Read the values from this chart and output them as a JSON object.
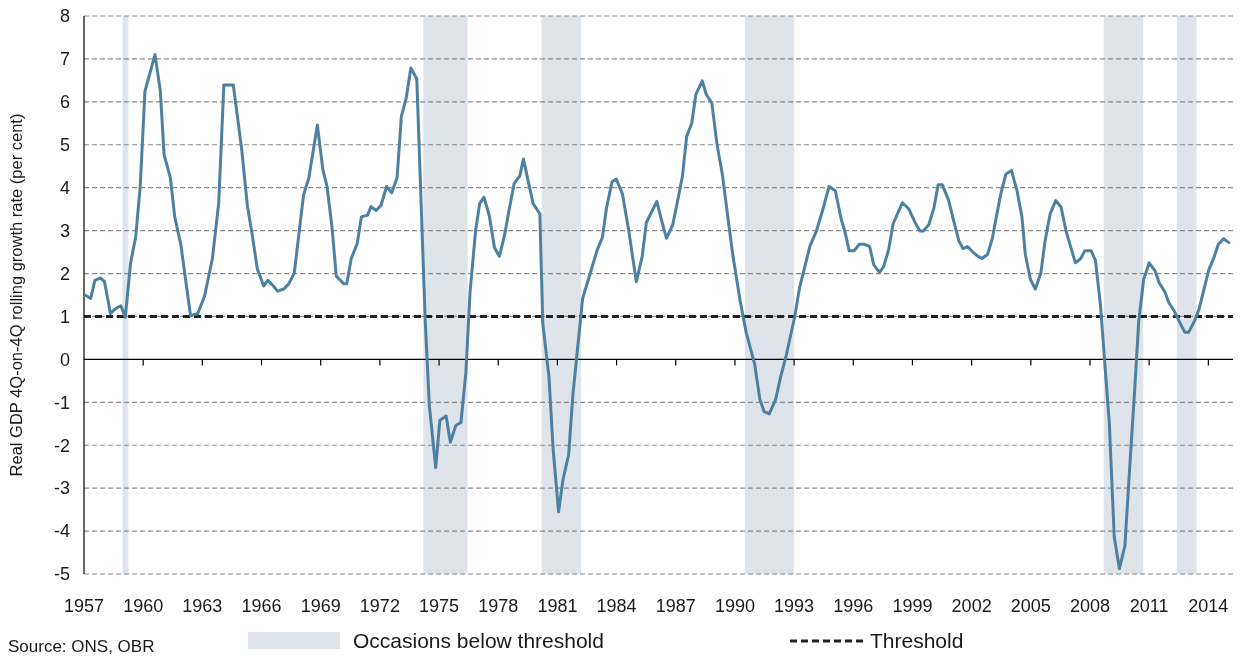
{
  "chart_data": {
    "type": "line",
    "ylabel": "Real GDP 4Q-on-4Q rolling growth rate (per cent)",
    "xlim": [
      1957,
      2015.25
    ],
    "xticks": [
      1957,
      1960,
      1963,
      1966,
      1969,
      1972,
      1975,
      1978,
      1981,
      1984,
      1987,
      1990,
      1993,
      1996,
      1999,
      2002,
      2005,
      2008,
      2011,
      2014
    ],
    "ylim": [
      -5,
      8
    ],
    "yticks": [
      -5,
      -4,
      -3,
      -2,
      -1,
      0,
      1,
      2,
      3,
      4,
      5,
      6,
      7,
      8
    ],
    "grid": "y",
    "legend": "bottom",
    "marker": "none",
    "line_style": "solid",
    "series": [
      {
        "color": "#4d81a2",
        "x": [
          1957.09,
          1957.34,
          1957.55,
          1957.83,
          1958.04,
          1958.34,
          1958.62,
          1958.87,
          1959.09,
          1959.36,
          1959.62,
          1959.85,
          1960.09,
          1960.6,
          1960.87,
          1961.06,
          1961.38,
          1961.6,
          1961.91,
          1962.4,
          1962.77,
          1963.11,
          1963.51,
          1963.83,
          1964.09,
          1964.57,
          1965.0,
          1965.28,
          1965.53,
          1965.79,
          1966.11,
          1966.32,
          1966.6,
          1966.81,
          1967.13,
          1967.38,
          1967.66,
          1968.13,
          1968.4,
          1968.83,
          1969.11,
          1969.32,
          1969.57,
          1969.79,
          1970.17,
          1970.32,
          1970.55,
          1970.85,
          1971.06,
          1971.38,
          1971.55,
          1971.81,
          1972.06,
          1972.34,
          1972.6,
          1972.87,
          1973.09,
          1973.34,
          1973.57,
          1973.87,
          1974.3,
          1974.51,
          1974.83,
          1975.04,
          1975.36,
          1975.57,
          1975.85,
          1976.11,
          1976.36,
          1976.57,
          1976.85,
          1977.06,
          1977.28,
          1977.55,
          1977.81,
          1978.06,
          1978.34,
          1978.55,
          1978.81,
          1979.09,
          1979.28,
          1979.51,
          1979.77,
          1980.11,
          1980.26,
          1980.57,
          1980.79,
          1981.06,
          1981.28,
          1981.57,
          1981.79,
          1982.28,
          1982.7,
          1983.02,
          1983.28,
          1983.49,
          1983.77,
          1983.98,
          1984.3,
          1984.62,
          1985.0,
          1985.3,
          1985.51,
          1985.79,
          1986.04,
          1986.28,
          1986.53,
          1986.85,
          1987.11,
          1987.34,
          1987.55,
          1987.81,
          1988.02,
          1988.34,
          1988.55,
          1988.83,
          1989.09,
          1989.36,
          1989.62,
          1989.87,
          1990.26,
          1990.57,
          1991.0,
          1991.26,
          1991.47,
          1991.74,
          1992.06,
          1992.32,
          1992.6,
          1993.02,
          1993.28,
          1993.81,
          1994.13,
          1994.45,
          1994.77,
          1995.09,
          1995.4,
          1995.57,
          1995.79,
          1996.04,
          1996.3,
          1996.57,
          1996.83,
          1997.04,
          1997.32,
          1997.53,
          1997.79,
          1998.02,
          1998.49,
          1998.81,
          1999.13,
          1999.38,
          1999.55,
          1999.83,
          2000.09,
          2000.3,
          2000.51,
          2000.83,
          2001.11,
          2001.36,
          2001.57,
          2001.79,
          2002.11,
          2002.32,
          2002.53,
          2002.81,
          2003.06,
          2003.28,
          2003.49,
          2003.74,
          2004.02,
          2004.3,
          2004.55,
          2004.72,
          2004.98,
          2005.23,
          2005.51,
          2005.72,
          2005.98,
          2006.26,
          2006.53,
          2006.79,
          2007.0,
          2007.26,
          2007.53,
          2007.74,
          2008.06,
          2008.28,
          2008.53,
          2008.77,
          2008.98,
          2009.23,
          2009.49,
          2009.77,
          2010.02,
          2010.26,
          2010.47,
          2010.72,
          2011.0,
          2011.3,
          2011.51,
          2011.79,
          2012.0,
          2012.28,
          2012.53,
          2012.81,
          2013.0,
          2013.28,
          2013.53,
          2013.74,
          2014.02,
          2014.28,
          2014.51,
          2014.77,
          2015.04
        ],
        "values": [
          1.49,
          1.42,
          1.84,
          1.9,
          1.81,
          1.07,
          1.19,
          1.25,
          0.98,
          2.24,
          2.85,
          4.03,
          6.25,
          7.1,
          6.25,
          4.77,
          4.23,
          3.32,
          2.67,
          1.02,
          1.07,
          1.47,
          2.35,
          3.64,
          6.39,
          6.39,
          4.87,
          3.59,
          2.9,
          2.1,
          1.71,
          1.84,
          1.71,
          1.59,
          1.64,
          1.76,
          2.01,
          3.83,
          4.23,
          5.46,
          4.42,
          4.03,
          3.09,
          1.94,
          1.76,
          1.76,
          2.35,
          2.7,
          3.32,
          3.36,
          3.56,
          3.47,
          3.59,
          4.03,
          3.88,
          4.23,
          5.66,
          6.1,
          6.79,
          6.54,
          0.88,
          -1.09,
          -2.52,
          -1.42,
          -1.32,
          -1.93,
          -1.54,
          -1.47,
          -0.31,
          1.56,
          2.99,
          3.63,
          3.78,
          3.34,
          2.6,
          2.4,
          2.94,
          3.48,
          4.1,
          4.27,
          4.67,
          4.17,
          3.63,
          3.39,
          0.83,
          -0.4,
          -2.13,
          -3.55,
          -2.81,
          -2.22,
          -0.8,
          1.42,
          2.06,
          2.55,
          2.84,
          3.53,
          4.14,
          4.2,
          3.85,
          2.99,
          1.81,
          2.4,
          3.19,
          3.45,
          3.68,
          3.24,
          2.82,
          3.14,
          3.73,
          4.27,
          5.19,
          5.5,
          6.17,
          6.49,
          6.17,
          5.97,
          5.01,
          4.32,
          3.39,
          2.5,
          1.37,
          0.63,
          -0.11,
          -0.92,
          -1.21,
          -1.27,
          -0.94,
          -0.4,
          0.09,
          0.97,
          1.68,
          2.65,
          2.99,
          3.48,
          4.03,
          3.93,
          3.24,
          2.99,
          2.53,
          2.53,
          2.68,
          2.68,
          2.63,
          2.2,
          2.03,
          2.15,
          2.55,
          3.16,
          3.65,
          3.51,
          3.19,
          2.99,
          2.99,
          3.14,
          3.53,
          4.07,
          4.07,
          3.71,
          3.19,
          2.75,
          2.58,
          2.63,
          2.48,
          2.4,
          2.35,
          2.45,
          2.84,
          3.39,
          3.88,
          4.32,
          4.4,
          3.93,
          3.32,
          2.45,
          1.86,
          1.64,
          2.01,
          2.75,
          3.39,
          3.7,
          3.55,
          2.99,
          2.65,
          2.25,
          2.35,
          2.53,
          2.53,
          2.3,
          1.27,
          -0.21,
          -1.49,
          -4.14,
          -4.88,
          -4.34,
          -2.47,
          -0.75,
          0.88,
          1.86,
          2.25,
          2.06,
          1.78,
          1.58,
          1.32,
          1.12,
          0.88,
          0.63,
          0.63,
          0.88,
          1.17,
          1.56,
          2.08,
          2.37,
          2.68,
          2.81,
          2.72
        ]
      }
    ],
    "bands": [
      {
        "axis": "x",
        "from": 1958.95,
        "to": 1959.25,
        "label": "Occasions below threshold",
        "color": "#dfe4eb"
      },
      {
        "axis": "x",
        "from": 1974.2,
        "to": 1976.45,
        "color": "#dfe4eb"
      },
      {
        "axis": "x",
        "from": 1980.2,
        "to": 1982.2,
        "color": "#dfe4eb"
      },
      {
        "axis": "x",
        "from": 1990.5,
        "to": 1993.0,
        "color": "#dfe4eb"
      },
      {
        "axis": "x",
        "from": 2008.7,
        "to": 2010.7,
        "color": "#dfe4eb"
      },
      {
        "axis": "x",
        "from": 2012.4,
        "to": 2013.4,
        "color": "#dfe4eb"
      }
    ],
    "ref_lines": [
      {
        "axis": "y",
        "value": 1,
        "label": "Threshold",
        "color": "#222222",
        "line_style": "dashed"
      }
    ],
    "annotations": [
      "Source: ONS, OBR"
    ]
  }
}
